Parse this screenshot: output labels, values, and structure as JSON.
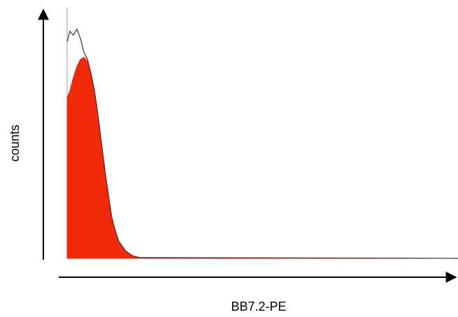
{
  "chart_data": {
    "type": "area",
    "y_label": "counts",
    "x_label": "BB7.2-PE",
    "x": [
      0,
      0.7,
      1.6,
      2.5,
      3.4,
      4.3,
      5.2,
      6.1,
      7,
      7.9,
      8.8,
      9.7,
      10.6,
      11.4,
      12.3,
      13.2,
      15,
      16.8,
      18.6,
      100
    ],
    "xlim": [
      0,
      100
    ],
    "ylim": [
      0,
      100
    ],
    "series": [
      {
        "color": "#f02a0a",
        "filled": true,
        "values": [
          65.7,
          68.6,
          74,
          78.6,
          81.4,
          82.3,
          80.6,
          75.7,
          67,
          57,
          45.7,
          34,
          24,
          17,
          11.4,
          7,
          3,
          1,
          0.3,
          0
        ]
      },
      {
        "color": "#333333",
        "filled": false,
        "values": [
          88.6,
          92.9,
          91.4,
          93.7,
          90,
          84.3,
          81.4,
          75.7,
          68.6,
          58.6,
          47,
          35.7,
          25.7,
          17,
          11.4,
          7,
          3,
          1,
          0.3,
          0
        ]
      }
    ]
  }
}
